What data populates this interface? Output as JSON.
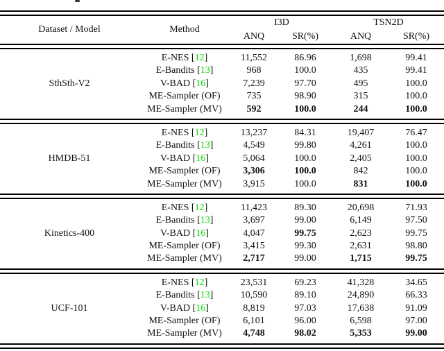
{
  "table": {
    "citation_color": "#00e000",
    "columns": {
      "dataset_model": "Dataset / Model",
      "method": "Method",
      "model_groups": [
        "I3D",
        "TSN2D"
      ],
      "metrics": [
        "ANQ",
        "SR(%)"
      ]
    },
    "groups": [
      {
        "dataset": "SthSth-V2",
        "rows": [
          {
            "method": "E-NES",
            "cite": "12",
            "cells": [
              {
                "v": "11,552",
                "b": false
              },
              {
                "v": "86.96",
                "b": false
              },
              {
                "v": "1,698",
                "b": false
              },
              {
                "v": "99.41",
                "b": false
              }
            ]
          },
          {
            "method": "E-Bandits",
            "cite": "13",
            "cells": [
              {
                "v": "968",
                "b": false
              },
              {
                "v": "100.0",
                "b": false
              },
              {
                "v": "435",
                "b": false
              },
              {
                "v": "99.41",
                "b": false
              }
            ]
          },
          {
            "method": "V-BAD",
            "cite": "16",
            "cells": [
              {
                "v": "7,239",
                "b": false
              },
              {
                "v": "97.70",
                "b": false
              },
              {
                "v": "495",
                "b": false
              },
              {
                "v": "100.0",
                "b": false
              }
            ]
          },
          {
            "method": "ME-Sampler (OF)",
            "cite": null,
            "cells": [
              {
                "v": "735",
                "b": false
              },
              {
                "v": "98.90",
                "b": false
              },
              {
                "v": "315",
                "b": false
              },
              {
                "v": "100.0",
                "b": false
              }
            ]
          },
          {
            "method": "ME-Sampler (MV)",
            "cite": null,
            "cells": [
              {
                "v": "592",
                "b": true
              },
              {
                "v": "100.0",
                "b": true
              },
              {
                "v": "244",
                "b": true
              },
              {
                "v": "100.0",
                "b": true
              }
            ]
          }
        ]
      },
      {
        "dataset": "HMDB-51",
        "rows": [
          {
            "method": "E-NES",
            "cite": "12",
            "cells": [
              {
                "v": "13,237",
                "b": false
              },
              {
                "v": "84.31",
                "b": false
              },
              {
                "v": "19,407",
                "b": false
              },
              {
                "v": "76.47",
                "b": false
              }
            ]
          },
          {
            "method": "E-Bandits",
            "cite": "13",
            "cells": [
              {
                "v": "4,549",
                "b": false
              },
              {
                "v": "99.80",
                "b": false
              },
              {
                "v": "4,261",
                "b": false
              },
              {
                "v": "100.0",
                "b": false
              }
            ]
          },
          {
            "method": "V-BAD",
            "cite": "16",
            "cells": [
              {
                "v": "5,064",
                "b": false
              },
              {
                "v": "100.0",
                "b": false
              },
              {
                "v": "2,405",
                "b": false
              },
              {
                "v": "100.0",
                "b": false
              }
            ]
          },
          {
            "method": "ME-Sampler (OF)",
            "cite": null,
            "cells": [
              {
                "v": "3,306",
                "b": true
              },
              {
                "v": "100.0",
                "b": true
              },
              {
                "v": "842",
                "b": false
              },
              {
                "v": "100.0",
                "b": false
              }
            ]
          },
          {
            "method": "ME-Sampler (MV)",
            "cite": null,
            "cells": [
              {
                "v": "3,915",
                "b": false
              },
              {
                "v": "100.0",
                "b": false
              },
              {
                "v": "831",
                "b": true
              },
              {
                "v": "100.0",
                "b": true
              }
            ]
          }
        ]
      },
      {
        "dataset": "Kinetics-400",
        "rows": [
          {
            "method": "E-NES",
            "cite": "12",
            "cells": [
              {
                "v": "11,423",
                "b": false
              },
              {
                "v": "89.30",
                "b": false
              },
              {
                "v": "20,698",
                "b": false
              },
              {
                "v": "71.93",
                "b": false
              }
            ]
          },
          {
            "method": "E-Bandits",
            "cite": "13",
            "cells": [
              {
                "v": "3,697",
                "b": false
              },
              {
                "v": "99.00",
                "b": false
              },
              {
                "v": "6,149",
                "b": false
              },
              {
                "v": "97.50",
                "b": false
              }
            ]
          },
          {
            "method": "V-BAD",
            "cite": "16",
            "cells": [
              {
                "v": "4,047",
                "b": false
              },
              {
                "v": "99.75",
                "b": true
              },
              {
                "v": "2,623",
                "b": false
              },
              {
                "v": "99.75",
                "b": false
              }
            ]
          },
          {
            "method": "ME-Sampler (OF)",
            "cite": null,
            "cells": [
              {
                "v": "3,415",
                "b": false
              },
              {
                "v": "99.30",
                "b": false
              },
              {
                "v": "2,631",
                "b": false
              },
              {
                "v": "98.80",
                "b": false
              }
            ]
          },
          {
            "method": "ME-Sampler (MV)",
            "cite": null,
            "cells": [
              {
                "v": "2,717",
                "b": true
              },
              {
                "v": "99.00",
                "b": false
              },
              {
                "v": "1,715",
                "b": true
              },
              {
                "v": "99.75",
                "b": true
              }
            ]
          }
        ]
      },
      {
        "dataset": "UCF-101",
        "rows": [
          {
            "method": "E-NES",
            "cite": "12",
            "cells": [
              {
                "v": "23,531",
                "b": false
              },
              {
                "v": "69.23",
                "b": false
              },
              {
                "v": "41,328",
                "b": false
              },
              {
                "v": "34.65",
                "b": false
              }
            ]
          },
          {
            "method": "E-Bandits",
            "cite": "13",
            "cells": [
              {
                "v": "10,590",
                "b": false
              },
              {
                "v": "89.10",
                "b": false
              },
              {
                "v": "24,890",
                "b": false
              },
              {
                "v": "66.33",
                "b": false
              }
            ]
          },
          {
            "method": "V-BAD",
            "cite": "16",
            "cells": [
              {
                "v": "8,819",
                "b": false
              },
              {
                "v": "97.03",
                "b": false
              },
              {
                "v": "17,638",
                "b": false
              },
              {
                "v": "91.09",
                "b": false
              }
            ]
          },
          {
            "method": "ME-Sampler (OF)",
            "cite": null,
            "cells": [
              {
                "v": "6,101",
                "b": false
              },
              {
                "v": "96.00",
                "b": false
              },
              {
                "v": "6,598",
                "b": false
              },
              {
                "v": "97.00",
                "b": false
              }
            ]
          },
          {
            "method": "ME-Sampler (MV)",
            "cite": null,
            "cells": [
              {
                "v": "4,748",
                "b": true
              },
              {
                "v": "98.02",
                "b": true
              },
              {
                "v": "5,353",
                "b": true
              },
              {
                "v": "99.00",
                "b": true
              }
            ]
          }
        ]
      }
    ]
  }
}
